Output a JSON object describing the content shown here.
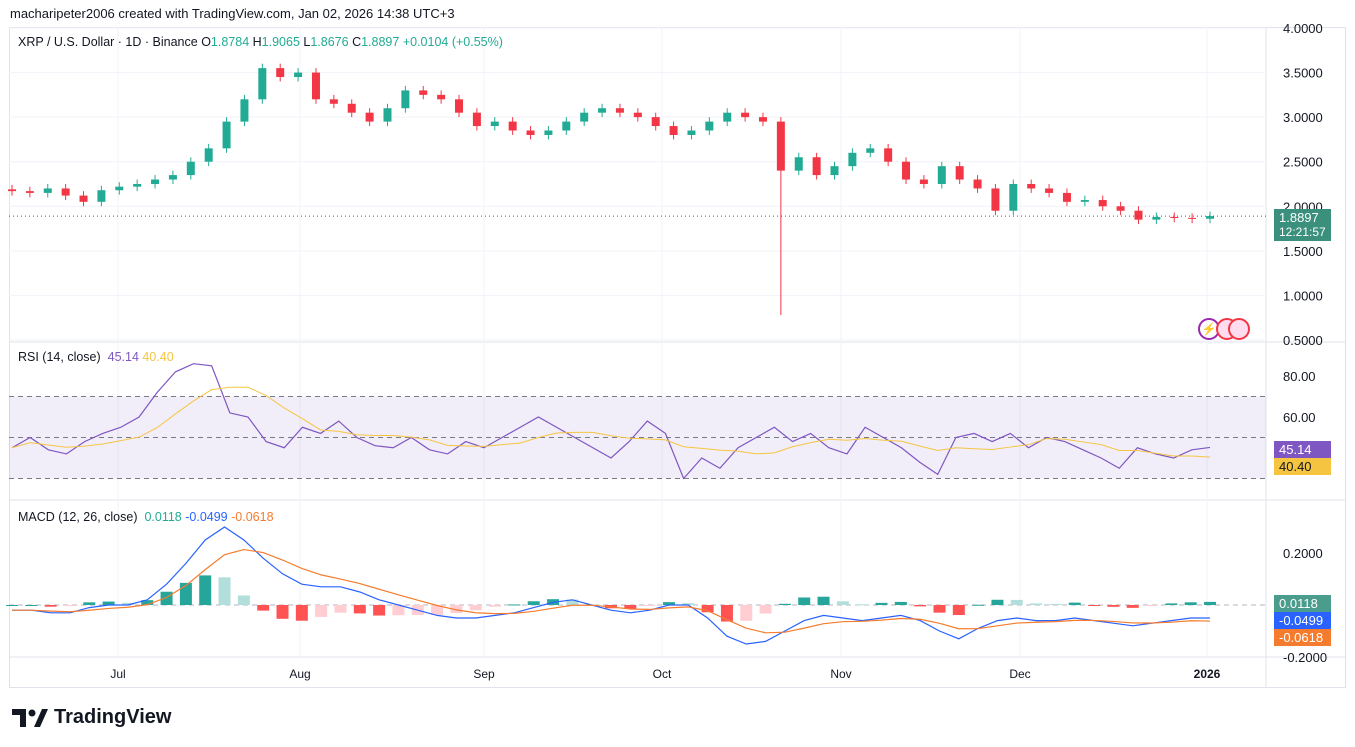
{
  "credit": "macharipeter2006 created with TradingView.com, Jan 02, 2026 14:38 UTC+3",
  "brand": "TradingView",
  "legend": {
    "symbol": "XRP / U.S. Dollar · 1D · Binance",
    "o_label": "O",
    "o": "1.8784",
    "h_label": "H",
    "h": "1.9065",
    "l_label": "L",
    "l": "1.8676",
    "c_label": "C",
    "c": "1.8897",
    "change": "+0.0104 (+0.55%)"
  },
  "price_label": {
    "value": "1.8897",
    "countdown": "12:21:57"
  },
  "rsi_legend": {
    "title": "RSI (14, close)",
    "rsi": "45.14",
    "ma": "40.40"
  },
  "macd_legend": {
    "title": "MACD (12, 26, close)",
    "hist": "0.0118",
    "macd": "-0.0499",
    "signal": "-0.0618"
  },
  "colors": {
    "up": "#22ab94",
    "down": "#f23645",
    "rsi": "#7e57c2",
    "rsi_ma": "#f5c542",
    "macd": "#2962ff",
    "signal": "#f57c2e"
  },
  "chart_data": [
    {
      "type": "candlestick",
      "title": "XRP / U.S. Dollar",
      "x_ticks": [
        "Jul",
        "Aug",
        "Sep",
        "Oct",
        "Nov",
        "Dec",
        "2026"
      ],
      "y_ticks": [
        "4.0000",
        "3.5000",
        "3.0000",
        "2.5000",
        "2.0000",
        "1.5000",
        "1.0000",
        "0.5000"
      ],
      "ylim": [
        0.5,
        4.0
      ],
      "closes": [
        2.17,
        2.15,
        2.2,
        2.12,
        2.05,
        2.18,
        2.22,
        2.25,
        2.3,
        2.35,
        2.5,
        2.65,
        2.95,
        3.2,
        3.55,
        3.45,
        3.5,
        3.2,
        3.15,
        3.05,
        2.95,
        3.1,
        3.3,
        3.25,
        3.2,
        3.05,
        2.9,
        2.95,
        2.85,
        2.8,
        2.85,
        2.95,
        3.05,
        3.1,
        3.05,
        3.0,
        2.9,
        2.8,
        2.85,
        2.95,
        3.05,
        3.0,
        2.95,
        2.4,
        2.55,
        2.35,
        2.45,
        2.6,
        2.65,
        2.5,
        2.3,
        2.25,
        2.45,
        2.3,
        2.2,
        1.95,
        2.25,
        2.2,
        2.15,
        2.05,
        2.07,
        2.0,
        1.95,
        1.85,
        1.88,
        1.87,
        1.86,
        1.89
      ],
      "spike_low": 0.78
    },
    {
      "type": "line",
      "title": "RSI (14, close)",
      "y_ticks": [
        "80.00",
        "60.00"
      ],
      "bands": [
        70,
        50,
        30
      ],
      "rsi": [
        45,
        50,
        44,
        42,
        48,
        52,
        55,
        60,
        72,
        82,
        86,
        85,
        62,
        60,
        48,
        45,
        55,
        52,
        58,
        50,
        46,
        45,
        50,
        44,
        42,
        48,
        45,
        50,
        55,
        60,
        55,
        50,
        45,
        40,
        48,
        58,
        52,
        30,
        40,
        35,
        45,
        50,
        55,
        48,
        52,
        45,
        42,
        55,
        50,
        45,
        38,
        32,
        50,
        52,
        48,
        52,
        45,
        50,
        48,
        44,
        40,
        35,
        45,
        42,
        40,
        44,
        45.14
      ]
    },
    {
      "type": "line",
      "title": "MACD (12, 26, close)",
      "y_ticks": [
        "0.2000",
        "-0.2000"
      ],
      "macd": [
        -0.02,
        -0.02,
        -0.03,
        -0.03,
        -0.01,
        0,
        0,
        0.02,
        0.08,
        0.16,
        0.25,
        0.3,
        0.25,
        0.18,
        0.12,
        0.08,
        0.07,
        0.07,
        0.05,
        0.02,
        0,
        -0.02,
        -0.04,
        -0.05,
        -0.05,
        -0.04,
        -0.03,
        -0.01,
        0.01,
        0.02,
        0,
        -0.02,
        -0.03,
        -0.02,
        0,
        0,
        -0.05,
        -0.12,
        -0.15,
        -0.14,
        -0.1,
        -0.06,
        -0.04,
        -0.05,
        -0.06,
        -0.05,
        -0.04,
        -0.06,
        -0.1,
        -0.13,
        -0.09,
        -0.06,
        -0.05,
        -0.06,
        -0.06,
        -0.05,
        -0.06,
        -0.07,
        -0.08,
        -0.07,
        -0.06,
        -0.05,
        -0.0499
      ]
    }
  ]
}
